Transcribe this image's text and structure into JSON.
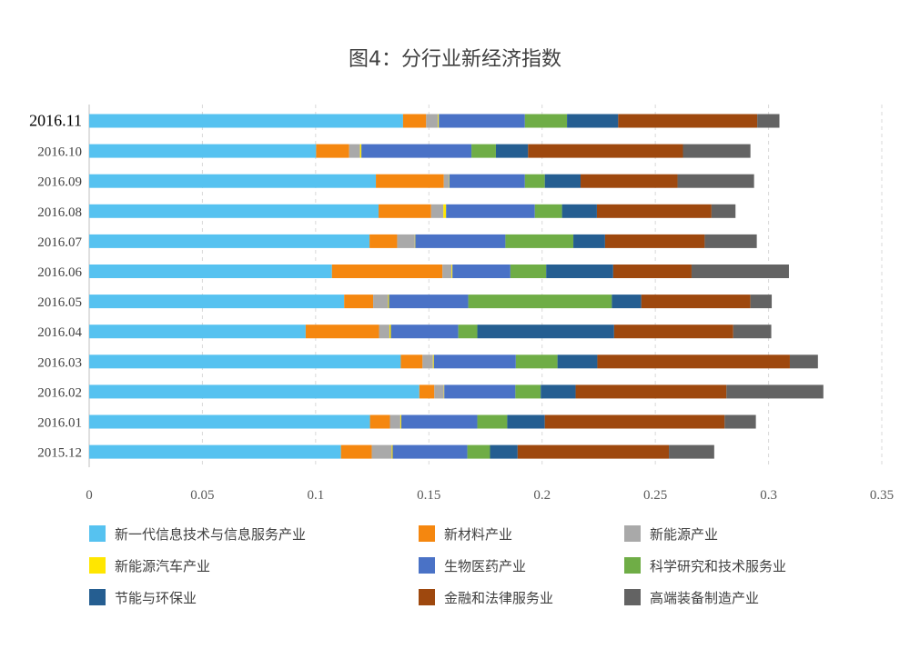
{
  "chart_data": {
    "type": "bar",
    "orientation": "horizontal",
    "stacked": true,
    "title": "图4：分行业新经济指数",
    "xlabel": "",
    "ylabel": "",
    "xlim": [
      0,
      0.35
    ],
    "xticks": [
      "0",
      "0.05",
      "0.1",
      "0.15",
      "0.2",
      "0.25",
      "0.3",
      "0.35"
    ],
    "xtick_values": [
      0,
      0.05,
      0.1,
      0.15,
      0.2,
      0.25,
      0.3,
      0.35
    ],
    "grid": true,
    "legend_position": "bottom",
    "categories": [
      "2016.11",
      "2016.10",
      "2016.09",
      "2016.08",
      "2016.07",
      "2016.06",
      "2016.05",
      "2016.04",
      "2016.03",
      "2016.02",
      "2016.01",
      "2015.12"
    ],
    "series": [
      {
        "name": "新一代信息技术与信息服务产业",
        "color": "#56c2f0",
        "values": [
          0.1386,
          0.1002,
          0.1266,
          0.1278,
          0.1238,
          0.1072,
          0.1126,
          0.0956,
          0.1376,
          0.1458,
          0.124,
          0.1112
        ]
      },
      {
        "name": "新材料产业",
        "color": "#f5870f",
        "values": [
          0.0102,
          0.0146,
          0.03,
          0.0232,
          0.0122,
          0.0488,
          0.0128,
          0.0324,
          0.0096,
          0.0066,
          0.0088,
          0.0136
        ]
      },
      {
        "name": "新能源产业",
        "color": "#a9a9a9",
        "values": [
          0.0052,
          0.0048,
          0.0022,
          0.0054,
          0.0078,
          0.004,
          0.0066,
          0.0046,
          0.0046,
          0.0042,
          0.0046,
          0.0088
        ]
      },
      {
        "name": "新能源汽车产业",
        "color": "#ffe600",
        "values": [
          0.0004,
          0.0006,
          0.0002,
          0.0012,
          0.0002,
          0.0004,
          0.0004,
          0.0006,
          0.0004,
          0.0002,
          0.0004,
          0.0004
        ]
      },
      {
        "name": "生物医药产业",
        "color": "#4a72c6",
        "values": [
          0.038,
          0.0486,
          0.0334,
          0.0392,
          0.0398,
          0.0256,
          0.035,
          0.0298,
          0.0362,
          0.0314,
          0.0336,
          0.033
        ]
      },
      {
        "name": "科学研究和技术服务业",
        "color": "#6fad46",
        "values": [
          0.0186,
          0.0108,
          0.0088,
          0.012,
          0.03,
          0.0158,
          0.0634,
          0.0084,
          0.0184,
          0.0112,
          0.0132,
          0.01
        ]
      },
      {
        "name": "节能与环保业",
        "color": "#255e91",
        "values": [
          0.0226,
          0.0142,
          0.0158,
          0.0154,
          0.014,
          0.0296,
          0.013,
          0.0604,
          0.0176,
          0.0154,
          0.0166,
          0.0122
        ]
      },
      {
        "name": "金融和法律服务业",
        "color": "#9e480e",
        "values": [
          0.0614,
          0.0684,
          0.0428,
          0.0506,
          0.044,
          0.0346,
          0.0482,
          0.0526,
          0.085,
          0.0666,
          0.0794,
          0.0668
        ]
      },
      {
        "name": "高端装备制造产业",
        "color": "#636363",
        "values": [
          0.0098,
          0.0298,
          0.0338,
          0.0106,
          0.023,
          0.043,
          0.0094,
          0.0168,
          0.0124,
          0.0428,
          0.0138,
          0.02
        ]
      }
    ]
  }
}
